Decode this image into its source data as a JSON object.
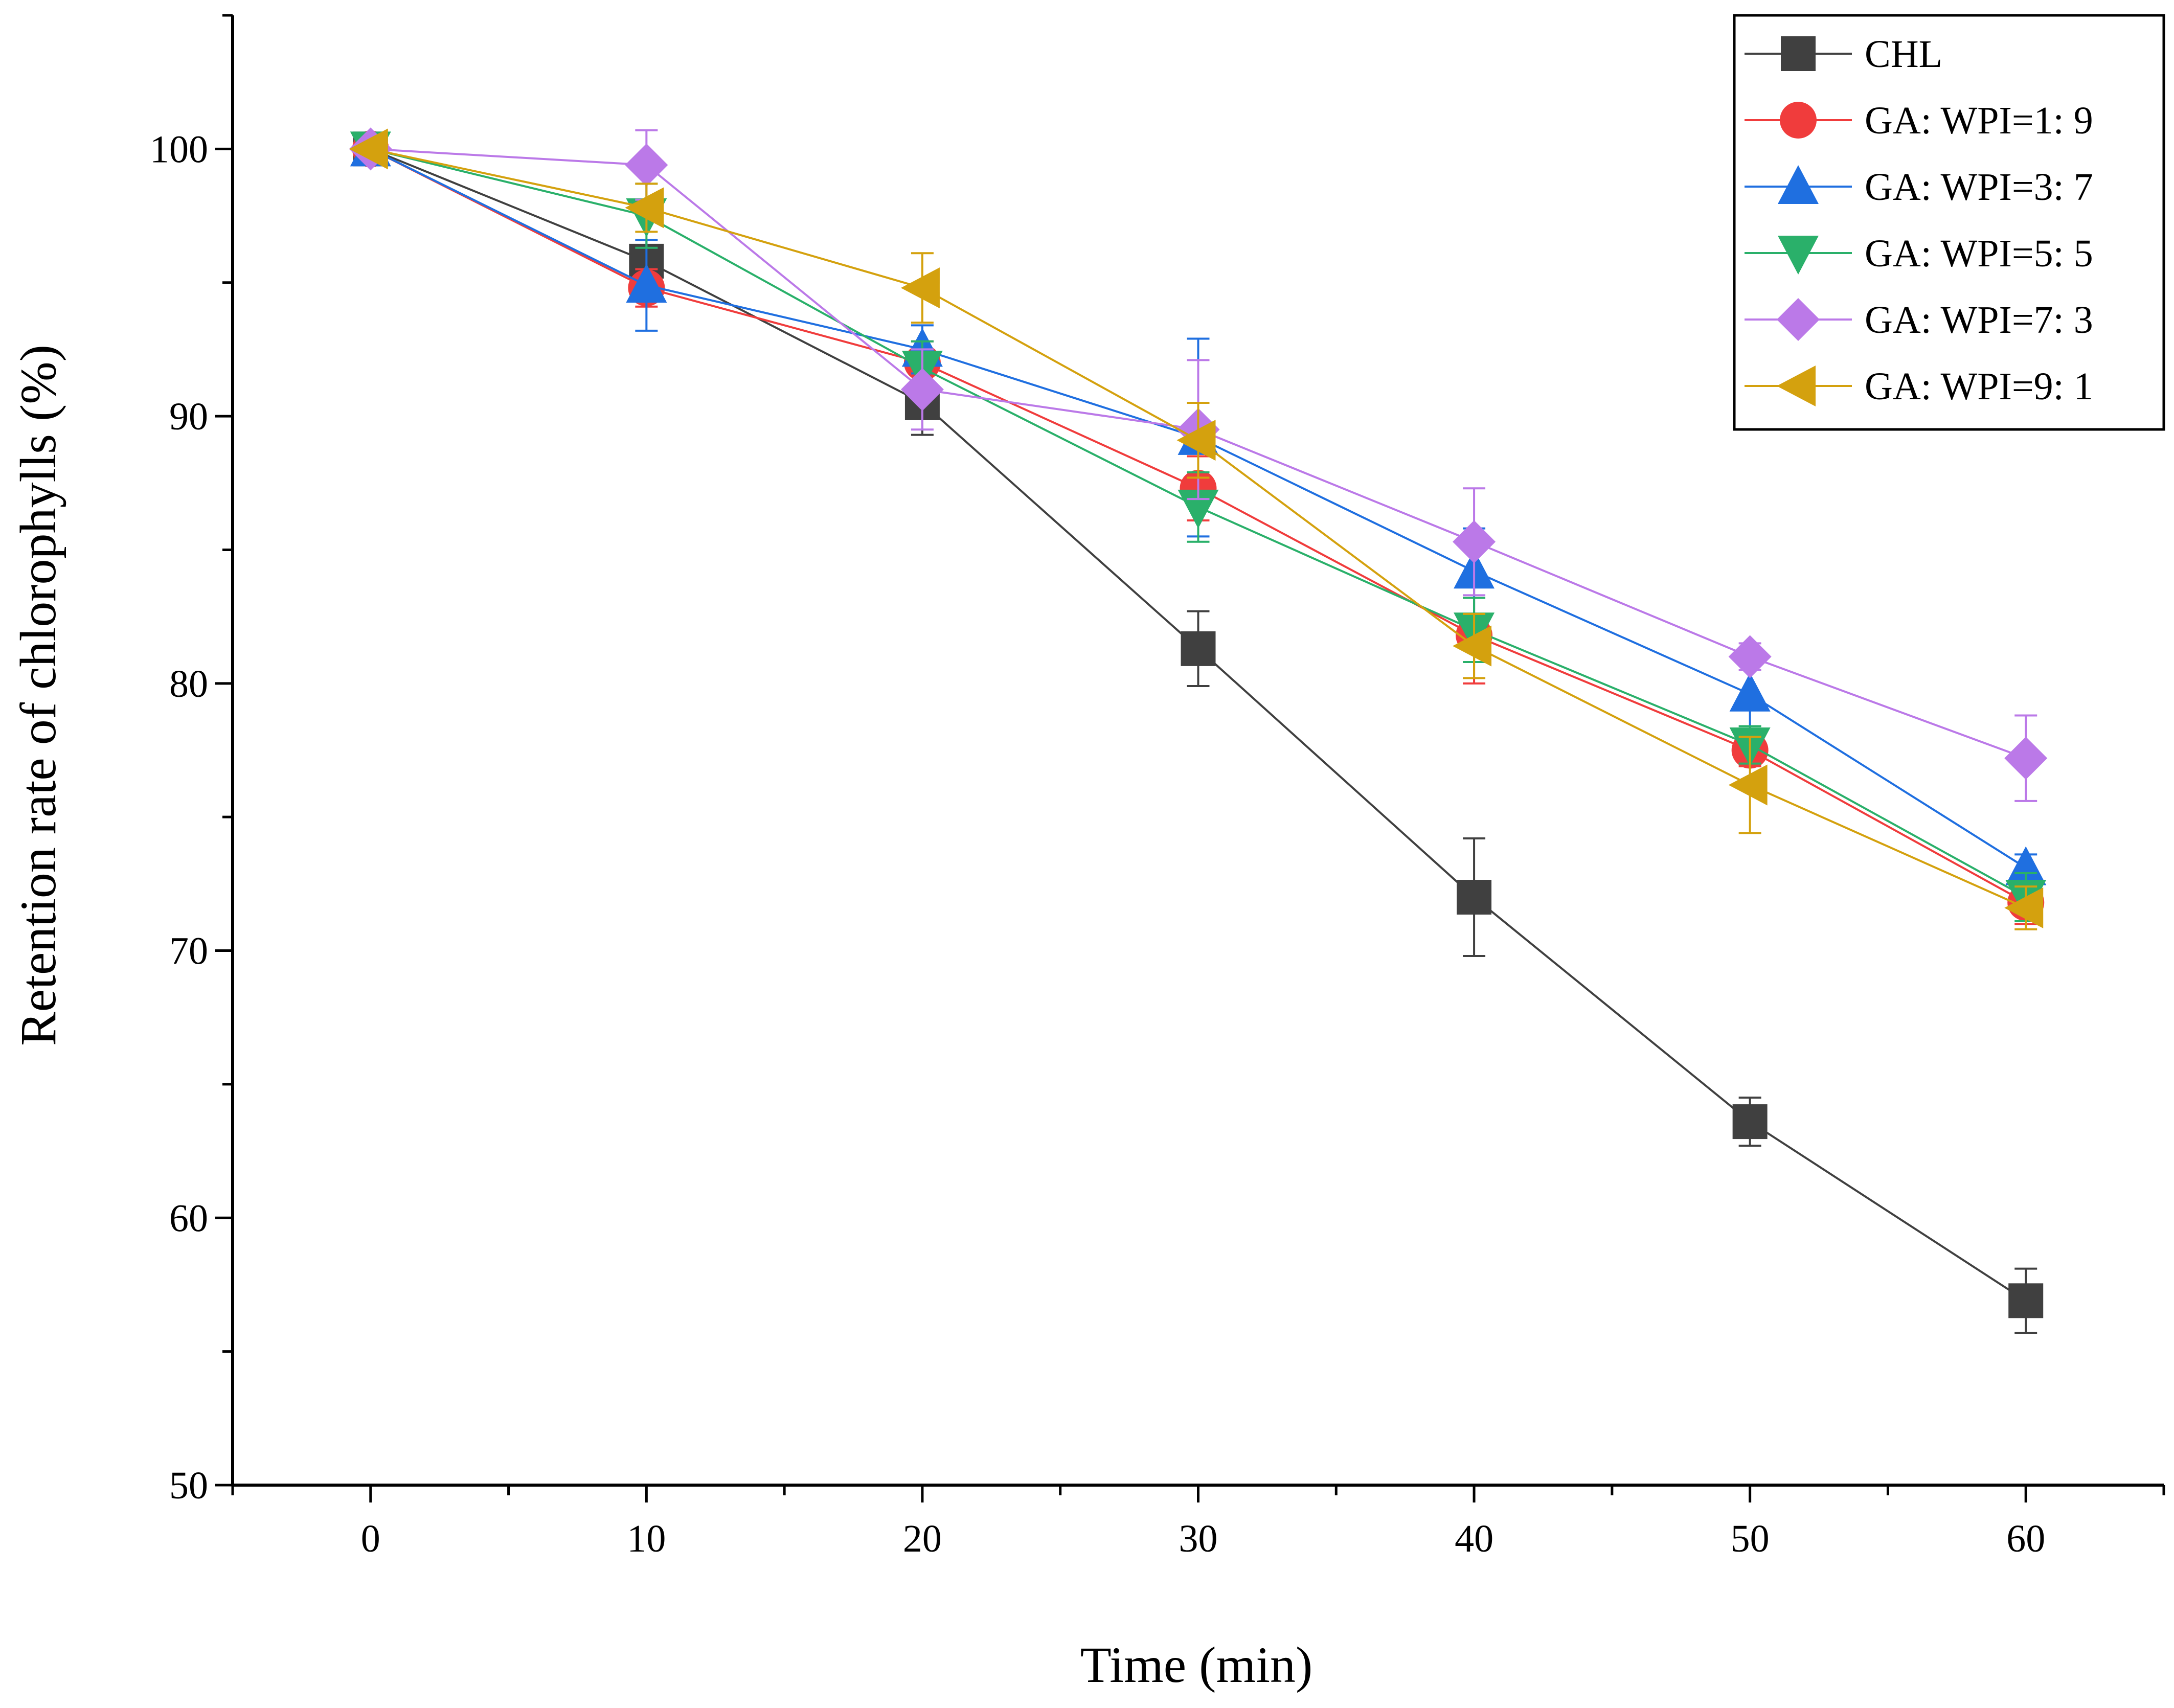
{
  "chart_data": {
    "type": "line",
    "title": "",
    "xlabel": "Time (min)",
    "ylabel": "Retention rate of chlorophylls (%)",
    "xlim": [
      -5,
      65
    ],
    "ylim": [
      50,
      105
    ],
    "xticks": [
      0,
      10,
      20,
      30,
      40,
      50,
      60
    ],
    "yticks": [
      50,
      60,
      70,
      80,
      90,
      100
    ],
    "x": [
      0,
      10,
      20,
      30,
      40,
      50,
      60
    ],
    "legend_position": "top-right",
    "series": [
      {
        "name": "CHL",
        "marker": "square",
        "color": "#404040",
        "values": [
          100,
          95.8,
          90.5,
          81.3,
          72.0,
          63.6,
          56.9
        ],
        "errors": [
          0,
          0.6,
          1.2,
          1.4,
          2.2,
          0.9,
          1.2
        ]
      },
      {
        "name": "GA: WPI=1: 9",
        "marker": "circle",
        "color": "#f03c3c",
        "values": [
          100,
          94.8,
          92.0,
          87.3,
          81.8,
          77.5,
          71.8
        ],
        "errors": [
          0,
          0.7,
          0.8,
          1.2,
          1.8,
          0.6,
          0.8
        ]
      },
      {
        "name": "GA: WPI=3: 7",
        "marker": "triangle-up",
        "color": "#1f6fe0",
        "values": [
          100,
          94.9,
          92.5,
          89.2,
          84.2,
          79.6,
          73.1
        ],
        "errors": [
          0,
          1.7,
          0.9,
          3.7,
          1.6,
          1.4,
          0.5
        ]
      },
      {
        "name": "GA: WPI=5: 5",
        "marker": "triangle-down",
        "color": "#2ab06a",
        "values": [
          100,
          97.5,
          91.8,
          86.6,
          82.0,
          77.7,
          72.0
        ],
        "errors": [
          0,
          1.2,
          1.0,
          1.3,
          1.2,
          0.7,
          0.9
        ]
      },
      {
        "name": "GA: WPI=7: 3",
        "marker": "diamond",
        "color": "#bb79e8",
        "values": [
          100,
          99.4,
          91.0,
          89.5,
          85.3,
          81.0,
          77.2
        ],
        "errors": [
          0,
          1.3,
          1.5,
          2.6,
          2.0,
          0.5,
          1.6
        ]
      },
      {
        "name": "GA: WPI=9: 1",
        "marker": "triangle-left",
        "color": "#d4a10e",
        "values": [
          100,
          97.8,
          94.8,
          89.1,
          81.4,
          76.2,
          71.6
        ],
        "errors": [
          0,
          0.9,
          1.3,
          1.4,
          1.2,
          1.8,
          0.8
        ]
      }
    ]
  }
}
